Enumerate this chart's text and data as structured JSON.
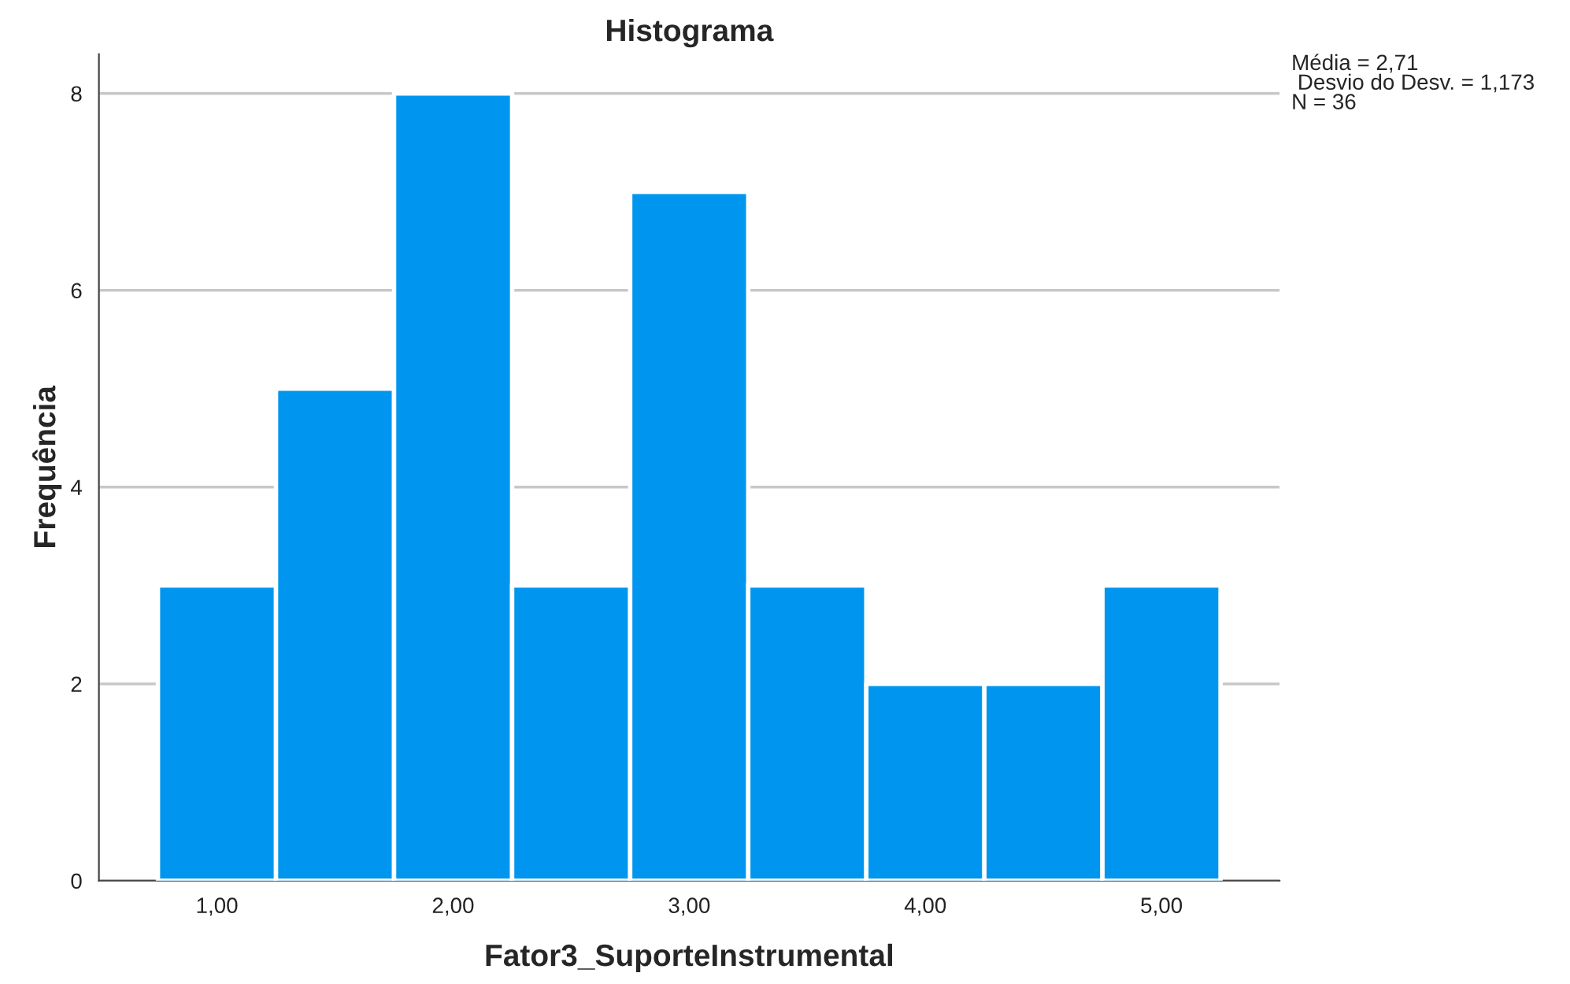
{
  "chart_data": {
    "type": "histogram",
    "title": "Histograma",
    "xlabel": "Fator3_SuporteInstrumental",
    "ylabel": "Frequência",
    "bins": [
      0.75,
      1.25,
      1.75,
      2.25,
      2.75,
      3.25,
      3.75,
      4.25,
      4.75,
      5.25
    ],
    "values": [
      3,
      5,
      8,
      3,
      7,
      3,
      2,
      2,
      3
    ],
    "color": "#0096ef",
    "xlim": [
      0.5,
      5.5
    ],
    "ylim": [
      0,
      8.4
    ],
    "xticks": [
      {
        "value": 1,
        "label": "1,00"
      },
      {
        "value": 2,
        "label": "2,00"
      },
      {
        "value": 3,
        "label": "3,00"
      },
      {
        "value": 4,
        "label": "4,00"
      },
      {
        "value": 5,
        "label": "5,00"
      }
    ],
    "yticks": [
      0,
      2,
      4,
      6,
      8
    ],
    "grid": "y",
    "annotations": [
      "Média = 2,71\n Desvio do Desv. = 1,173\nN = 36"
    ]
  }
}
